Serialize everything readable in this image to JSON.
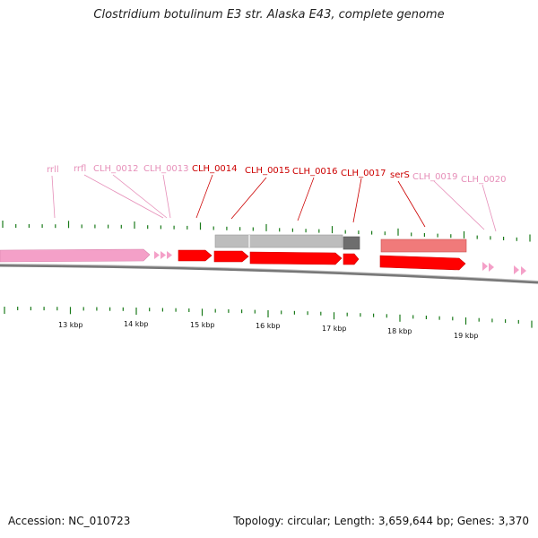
{
  "title": "Clostridium botulinum E3 str. Alaska E43, complete genome",
  "footer": {
    "accession": "Accession: NC_010723",
    "summary": "Topology: circular; Length: 3,659,644 bp; Genes: 3,370"
  },
  "colors": {
    "rrna": "#f4a0c8",
    "rrna_label": "#e68fb9",
    "gene": "#ff0000",
    "gene_label": "#cc0000",
    "trna": "#f07a7a",
    "gray_feature": "#bdbdbd",
    "dark_feature": "#6e6e6e",
    "tick": "#1a7a1a",
    "backbone": "#888888"
  },
  "scale": {
    "unit": "kbp",
    "labels": [
      "13 kbp",
      "14 kbp",
      "15 kbp",
      "16 kbp",
      "17 kbp",
      "18 kbp",
      "19 kbp"
    ]
  },
  "features": [
    {
      "label": "rrll",
      "type": "rRNA",
      "color": "#e68fb9"
    },
    {
      "label": "rrfl",
      "type": "rRNA",
      "color": "#e68fb9"
    },
    {
      "label": "CLH_0012",
      "type": "rRNA",
      "color": "#e68fb9"
    },
    {
      "label": "CLH_0013",
      "type": "rRNA",
      "color": "#e68fb9"
    },
    {
      "label": "CLH_0014",
      "type": "gene",
      "color": "#cc0000"
    },
    {
      "label": "CLH_0015",
      "type": "gene",
      "color": "#cc0000"
    },
    {
      "label": "CLH_0016",
      "type": "gene",
      "color": "#cc0000"
    },
    {
      "label": "CLH_0017",
      "type": "gene",
      "color": "#cc0000"
    },
    {
      "label": "serS",
      "type": "gene",
      "color": "#cc0000"
    },
    {
      "label": "CLH_0019",
      "type": "rRNA",
      "color": "#e68fb9"
    },
    {
      "label": "CLH_0020",
      "type": "rRNA",
      "color": "#e68fb9"
    }
  ]
}
